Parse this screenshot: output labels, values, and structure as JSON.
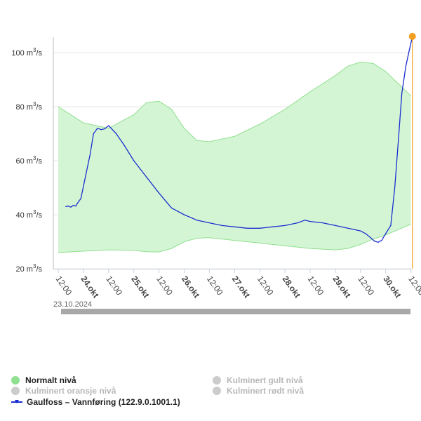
{
  "chart_data": {
    "type": "line",
    "title": "",
    "xlabel": "",
    "ylabel": "",
    "ylim": [
      20,
      106
    ],
    "xlim": [
      0,
      7.1
    ],
    "x_unit": "days since 23.10.2024 12:00",
    "y_ticks": [
      {
        "value": 20,
        "label": "20 m³/s"
      },
      {
        "value": 40,
        "label": "40 m³/s"
      },
      {
        "value": 60,
        "label": "60 m³/s"
      },
      {
        "value": 80,
        "label": "80 m³/s"
      },
      {
        "value": 100,
        "label": "100 m³/s"
      }
    ],
    "x_ticks": [
      {
        "value": 0.0,
        "label": "12:00",
        "bold": false
      },
      {
        "value": 0.5,
        "label": "24.okt",
        "bold": true
      },
      {
        "value": 1.0,
        "label": "12:00",
        "bold": false
      },
      {
        "value": 1.5,
        "label": "25.okt",
        "bold": true
      },
      {
        "value": 2.0,
        "label": "12:00",
        "bold": false
      },
      {
        "value": 2.5,
        "label": "26.okt",
        "bold": true
      },
      {
        "value": 3.0,
        "label": "12:00",
        "bold": false
      },
      {
        "value": 3.5,
        "label": "27.okt",
        "bold": true
      },
      {
        "value": 4.0,
        "label": "12:00",
        "bold": false
      },
      {
        "value": 4.5,
        "label": "28.okt",
        "bold": true
      },
      {
        "value": 5.0,
        "label": "12:00",
        "bold": false
      },
      {
        "value": 5.5,
        "label": "29.okt",
        "bold": true
      },
      {
        "value": 6.0,
        "label": "12:00",
        "bold": false
      },
      {
        "value": 6.5,
        "label": "30.okt",
        "bold": true
      },
      {
        "value": 7.0,
        "label": "12:00",
        "bold": false
      }
    ],
    "start_date_label": "23.10.2024",
    "series": [
      {
        "name": "Normalt nivå",
        "kind": "band",
        "color": "#90e090",
        "fill": "#d4f5d4",
        "x": [
          0.0,
          0.5,
          1.0,
          1.5,
          1.75,
          2.0,
          2.25,
          2.5,
          2.75,
          3.0,
          3.5,
          4.0,
          4.5,
          5.0,
          5.5,
          5.75,
          6.0,
          6.25,
          6.5,
          7.0
        ],
        "upper": [
          80,
          74,
          72,
          77,
          81.5,
          82,
          79,
          72,
          67.5,
          67,
          69,
          73.5,
          79,
          85.5,
          91.5,
          95,
          96.5,
          96,
          93,
          84
        ],
        "lower": [
          26,
          26.5,
          27,
          26.8,
          26.3,
          26.2,
          27.5,
          30,
          31.3,
          31.5,
          30.5,
          29.5,
          28.5,
          27.5,
          27,
          27.5,
          29,
          31,
          32.5,
          36.5
        ]
      },
      {
        "name": "Gaulfoss – Vannføring (122.9.0.1001.1)",
        "kind": "line",
        "color": "#1a2fd0",
        "x": [
          0.15,
          0.2,
          0.25,
          0.3,
          0.35,
          0.38,
          0.45,
          0.55,
          0.63,
          0.7,
          0.78,
          0.85,
          0.92,
          1.0,
          1.05,
          1.15,
          1.3,
          1.5,
          1.75,
          2.0,
          2.25,
          2.5,
          2.75,
          3.0,
          3.25,
          3.5,
          3.75,
          4.0,
          4.25,
          4.5,
          4.75,
          4.9,
          5.0,
          5.25,
          5.5,
          5.75,
          6.0,
          6.1,
          6.2,
          6.28,
          6.35,
          6.42,
          6.5,
          6.6,
          6.68,
          6.75,
          6.82,
          6.9,
          6.97,
          7.03
        ],
        "y": [
          43,
          43.2,
          42.8,
          43.5,
          43.2,
          44.2,
          46,
          55,
          62,
          70,
          72,
          71.5,
          71.8,
          73,
          72,
          70,
          66,
          60,
          54,
          48,
          42.5,
          40,
          38,
          37,
          36,
          35.5,
          35,
          35,
          35.5,
          36,
          37,
          38,
          37.5,
          37,
          36,
          35,
          34,
          33,
          31.5,
          30.2,
          29.8,
          30.5,
          33,
          36,
          50,
          67,
          85,
          95,
          101,
          106
        ]
      }
    ],
    "annotation": {
      "type": "current-value-marker",
      "x": 7.03,
      "y": 106,
      "color": "#f0a020"
    },
    "legend": {
      "placement": "bottom",
      "items": [
        {
          "label": "Normalt nivå",
          "color": "#90e090",
          "active": true,
          "marker": "dot"
        },
        {
          "label": "Kulminert gult nivå",
          "color": "#cccccc",
          "active": false,
          "marker": "dot"
        },
        {
          "label": "Kulminert oransje nivå",
          "color": "#cccccc",
          "active": false,
          "marker": "dot"
        },
        {
          "label": "Kulminert rødt nivå",
          "color": "#cccccc",
          "active": false,
          "marker": "dot"
        },
        {
          "label": "Gaulfoss – Vannføring (122.9.0.1001.1)",
          "color": "#1a2fd0",
          "active": true,
          "marker": "line"
        }
      ]
    }
  }
}
